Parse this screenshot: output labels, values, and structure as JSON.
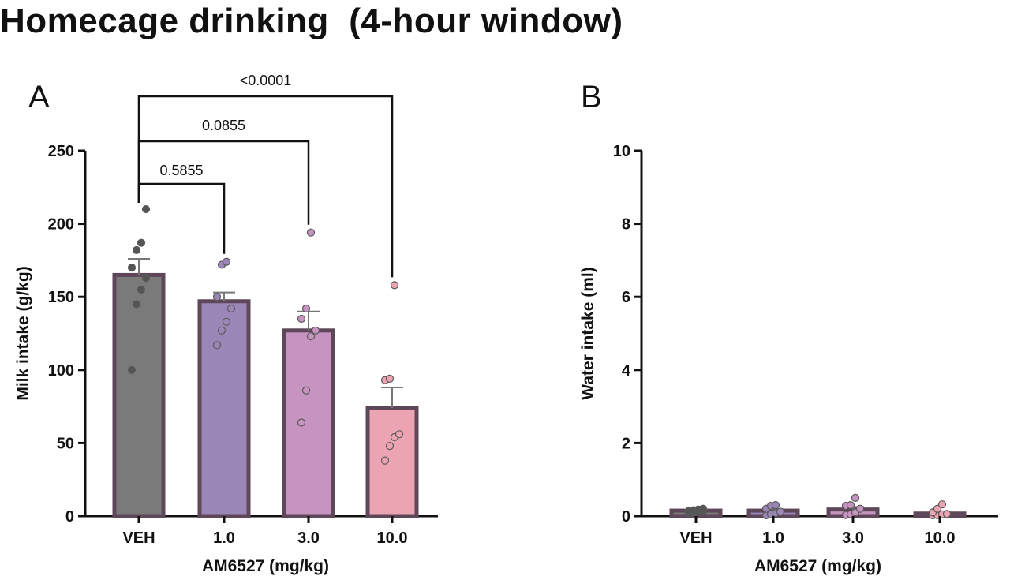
{
  "title": "Homecage drinking  (4-hour window)",
  "chart_data": [
    {
      "type": "bar",
      "panel": "A",
      "categories": [
        "VEH",
        "1.0",
        "3.0",
        "10.0"
      ],
      "xlabel": "AM6527 (mg/kg)",
      "ylabel": "Milk intake (g/kg)",
      "ylim": [
        0,
        250
      ],
      "yticks": [
        0,
        50,
        100,
        150,
        200,
        250
      ],
      "series": [
        {
          "values": [
            165,
            147,
            127,
            74
          ],
          "sem": [
            11,
            6,
            13,
            14
          ],
          "points": [
            [
              100,
              145,
              155,
              163,
              170,
              182,
              187,
              210
            ],
            [
              117,
              127,
              133,
              142,
              150,
              172,
              174
            ],
            [
              64,
              86,
              123,
              127,
              135,
              142,
              194
            ],
            [
              38,
              48,
              54,
              56,
              93,
              94,
              158
            ]
          ]
        }
      ],
      "colors": [
        "#7a7a7a",
        "#9b86b8",
        "#c794c1",
        "#eda4b2"
      ],
      "edge_color": "#5e4759",
      "comparisons": [
        {
          "from": "VEH",
          "to": "1.0",
          "label": "0.5855"
        },
        {
          "from": "VEH",
          "to": "3.0",
          "label": "0.0855"
        },
        {
          "from": "VEH",
          "to": "10.0",
          "label": "<0.0001"
        }
      ]
    },
    {
      "type": "bar",
      "panel": "B",
      "categories": [
        "VEH",
        "1.0",
        "3.0",
        "10.0"
      ],
      "xlabel": "AM6527 (mg/kg)",
      "ylabel": "Water intake (ml)",
      "ylim": [
        0,
        10
      ],
      "yticks": [
        0,
        2,
        4,
        6,
        8,
        10
      ],
      "series": [
        {
          "values": [
            0.15,
            0.15,
            0.18,
            0.07
          ],
          "sem": [
            0.03,
            0.04,
            0.07,
            0.04
          ],
          "points": [
            [
              0.08,
              0.1,
              0.12,
              0.13,
              0.14,
              0.16,
              0.18,
              0.2
            ],
            [
              0.02,
              0.05,
              0.08,
              0.12,
              0.2,
              0.28,
              0.3
            ],
            [
              0.03,
              0.05,
              0.1,
              0.2,
              0.28,
              0.3,
              0.5
            ],
            [
              0.02,
              0.03,
              0.05,
              0.06,
              0.1,
              0.2,
              0.32
            ]
          ]
        }
      ],
      "colors": [
        "#7a7a7a",
        "#9b86b8",
        "#c794c1",
        "#eda4b2"
      ],
      "edge_color": "#5e4759"
    }
  ]
}
